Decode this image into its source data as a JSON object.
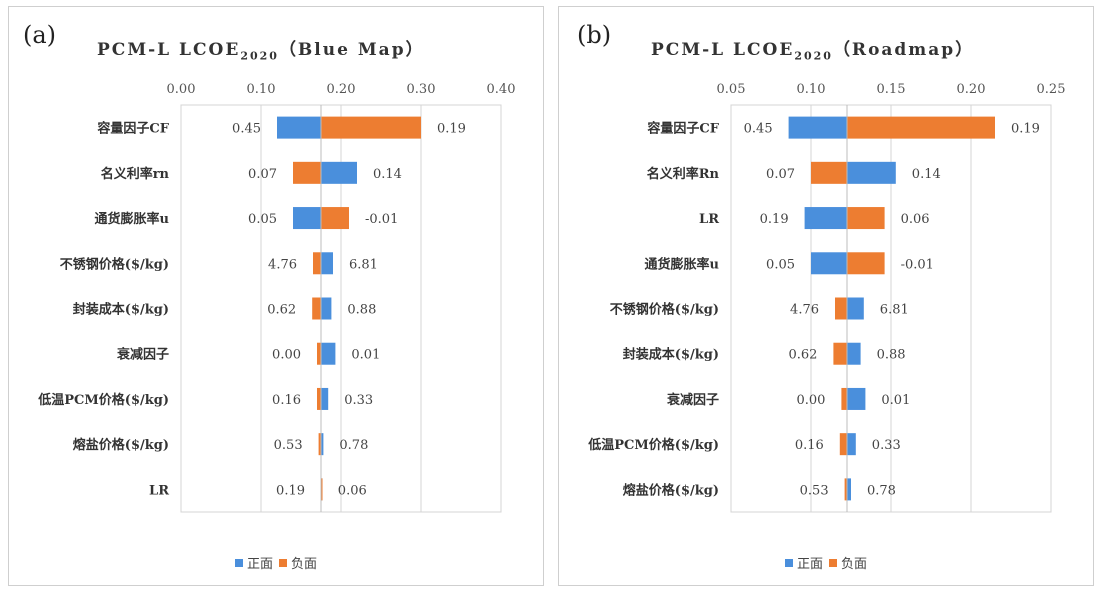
{
  "colors": {
    "positive": "#4a8fdc",
    "negative": "#ed7d31"
  },
  "legend": {
    "positive": "正面",
    "negative": "负面"
  },
  "chart_data": [
    {
      "type": "bar",
      "orientation": "horizontal",
      "subtype": "tornado",
      "panel_label": "(a)",
      "title": "PCM-L LCOE",
      "title_sub": "2020",
      "title_suffix": "（Blue Map）",
      "base": 0.175,
      "xlim": [
        0.0,
        0.4
      ],
      "xticks": [
        "0.00",
        "0.10",
        "0.20",
        "0.30",
        "0.40"
      ],
      "xtick_values": [
        0.0,
        0.1,
        0.2,
        0.3,
        0.4
      ],
      "grid": true,
      "legend_position": "bottom",
      "series": [
        {
          "name": "正面",
          "color": "#4a8fdc"
        },
        {
          "name": "负面",
          "color": "#ed7d31"
        }
      ],
      "rows": [
        {
          "label": "容量因子CF",
          "positive": 0.12,
          "negative": 0.3,
          "left_label": "0.45",
          "right_label": "0.19"
        },
        {
          "label": "名义利率rn",
          "positive": 0.22,
          "negative": 0.14,
          "left_label": "0.07",
          "right_label": "0.14"
        },
        {
          "label": "通货膨胀率u",
          "positive": 0.14,
          "negative": 0.21,
          "left_label": "0.05",
          "right_label": "-0.01"
        },
        {
          "label": "不锈钢价格($/kg)",
          "positive": 0.19,
          "negative": 0.165,
          "left_label": "4.76",
          "right_label": "6.81"
        },
        {
          "label": "封装成本($/kg)",
          "positive": 0.188,
          "negative": 0.164,
          "left_label": "0.62",
          "right_label": "0.88"
        },
        {
          "label": "衰减因子",
          "positive": 0.193,
          "negative": 0.17,
          "left_label": "0.00",
          "right_label": "0.01"
        },
        {
          "label": "低温PCM价格($/kg)",
          "positive": 0.184,
          "negative": 0.17,
          "left_label": "0.16",
          "right_label": "0.33"
        },
        {
          "label": "熔盐价格($/kg)",
          "positive": 0.178,
          "negative": 0.172,
          "left_label": "0.53",
          "right_label": "0.78"
        },
        {
          "label": "LR",
          "positive": 0.176,
          "negative": 0.175,
          "left_label": "0.19",
          "right_label": "0.06"
        }
      ]
    },
    {
      "type": "bar",
      "orientation": "horizontal",
      "subtype": "tornado",
      "panel_label": "(b)",
      "title": "PCM-L LCOE",
      "title_sub": "2020",
      "title_suffix": "（Roadmap）",
      "base": 0.1225,
      "xlim": [
        0.05,
        0.25
      ],
      "xticks": [
        "0.05",
        "0.10",
        "0.15",
        "0.20",
        "0.25"
      ],
      "xtick_values": [
        0.05,
        0.1,
        0.15,
        0.2,
        0.25
      ],
      "grid": true,
      "legend_position": "bottom",
      "series": [
        {
          "name": "正面",
          "color": "#4a8fdc"
        },
        {
          "name": "负面",
          "color": "#ed7d31"
        }
      ],
      "rows": [
        {
          "label": "容量因子CF",
          "positive": 0.086,
          "negative": 0.215,
          "left_label": "0.45",
          "right_label": "0.19"
        },
        {
          "label": "名义利率Rn",
          "positive": 0.153,
          "negative": 0.1,
          "left_label": "0.07",
          "right_label": "0.14"
        },
        {
          "label": "LR",
          "positive": 0.096,
          "negative": 0.146,
          "left_label": "0.19",
          "right_label": "0.06"
        },
        {
          "label": "通货膨胀率u",
          "positive": 0.1,
          "negative": 0.146,
          "left_label": "0.05",
          "right_label": "-0.01"
        },
        {
          "label": "不锈钢价格($/kg)",
          "positive": 0.133,
          "negative": 0.115,
          "left_label": "4.76",
          "right_label": "6.81"
        },
        {
          "label": "封装成本($/kg)",
          "positive": 0.131,
          "negative": 0.114,
          "left_label": "0.62",
          "right_label": "0.88"
        },
        {
          "label": "衰减因子",
          "positive": 0.134,
          "negative": 0.119,
          "left_label": "0.00",
          "right_label": "0.01"
        },
        {
          "label": "低温PCM价格($/kg)",
          "positive": 0.128,
          "negative": 0.118,
          "left_label": "0.16",
          "right_label": "0.33"
        },
        {
          "label": "熔盐价格($/kg)",
          "positive": 0.125,
          "negative": 0.121,
          "left_label": "0.53",
          "right_label": "0.78"
        }
      ]
    }
  ]
}
